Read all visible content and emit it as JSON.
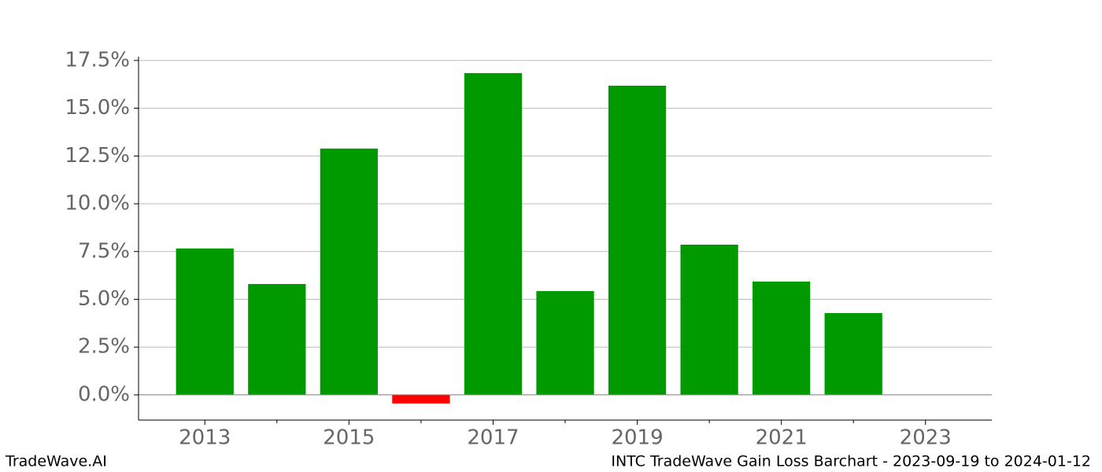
{
  "chart_data": {
    "type": "bar",
    "title": "INTC TradeWave Gain Loss Barchart - 2023-09-19 to 2024-01-12",
    "source": "TradeWave.AI",
    "x": [
      2013,
      2014,
      2015,
      2016,
      2017,
      2018,
      2019,
      2020,
      2021,
      2022,
      2023
    ],
    "values": [
      7.66,
      5.8,
      12.89,
      -0.45,
      16.84,
      5.43,
      16.18,
      7.86,
      5.93,
      4.28,
      null
    ],
    "color": "#009900",
    "negative_color": "#ff0000",
    "xlim": [
      2012.08,
      2023.92
    ],
    "xticks": [
      2013,
      2015,
      2017,
      2019,
      2021,
      2023
    ],
    "xminorticks": [
      2014,
      2016,
      2018,
      2020,
      2022
    ],
    "ylim": [
      -1.32,
      17.7
    ],
    "yticks": [
      {
        "value": 0,
        "label": "0.0%"
      },
      {
        "value": 2.5,
        "label": "2.5%"
      },
      {
        "value": 5,
        "label": "5.0%"
      },
      {
        "value": 7.5,
        "label": "7.5%"
      },
      {
        "value": 10,
        "label": "10.0%"
      },
      {
        "value": 12.5,
        "label": "12.5%"
      },
      {
        "value": 15,
        "label": "15.0%"
      },
      {
        "value": 17.5,
        "label": "17.5%"
      }
    ],
    "grid": true
  }
}
